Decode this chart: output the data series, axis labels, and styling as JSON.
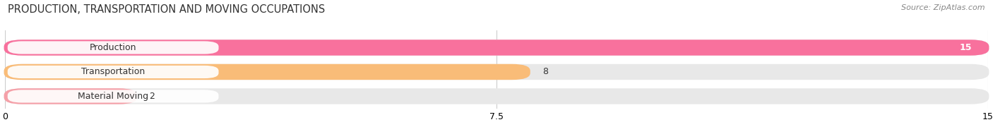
{
  "title": "PRODUCTION, TRANSPORTATION AND MOVING OCCUPATIONS",
  "source": "Source: ZipAtlas.com",
  "categories": [
    "Production",
    "Transportation",
    "Material Moving"
  ],
  "values": [
    15,
    8,
    2
  ],
  "bar_colors": [
    "#f8719d",
    "#f9bc78",
    "#f5a0a8"
  ],
  "bar_bg_color": "#e8e8e8",
  "label_bg_color": "#ffffff",
  "xlim": [
    0,
    15
  ],
  "xticks": [
    0,
    7.5,
    15
  ],
  "figsize": [
    14.06,
    1.97
  ],
  "dpi": 100,
  "title_fontsize": 10.5,
  "label_fontsize": 9.0,
  "value_fontsize": 9.0,
  "bar_height": 0.62,
  "bar_gap": 1.0,
  "background_color": "#ffffff",
  "grid_color": "#cccccc",
  "value_white_threshold": 14.5
}
